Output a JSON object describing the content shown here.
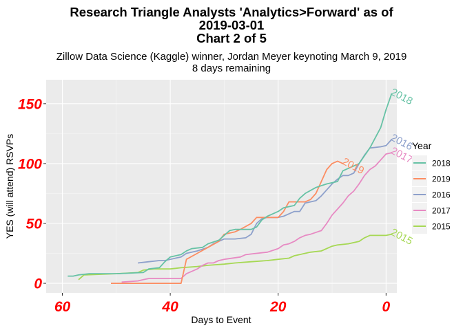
{
  "chart_data": {
    "type": "line",
    "title_lines": [
      "Research Triangle Analysts 'Analytics>Forward' as of",
      "2019-03-01",
      "Chart 2 of 5"
    ],
    "subtitle_lines": [
      "Zillow Data Science (Kaggle) winner, Jordan Meyer keynoting March 9, 2019",
      "8 days remaining"
    ],
    "xlabel": "Days to Event",
    "ylabel": "YES (will attend) RSVPs",
    "x_reversed": true,
    "xlim": [
      63,
      -2
    ],
    "ylim": [
      -8,
      170
    ],
    "x_ticks": [
      60,
      40,
      20,
      0
    ],
    "y_ticks": [
      0,
      50,
      100,
      150
    ],
    "grid": true,
    "legend": {
      "title": "Year",
      "position": "right"
    },
    "series": [
      {
        "name": "2018",
        "color": "#66C2A5",
        "end_label": "2018",
        "points": [
          [
            59,
            6
          ],
          [
            58,
            6
          ],
          [
            57,
            7
          ],
          [
            55,
            8
          ],
          [
            50,
            8
          ],
          [
            45,
            9
          ],
          [
            44,
            12
          ],
          [
            42,
            13
          ],
          [
            41,
            18
          ],
          [
            40,
            22
          ],
          [
            38,
            24
          ],
          [
            37,
            27
          ],
          [
            36,
            29
          ],
          [
            34,
            30
          ],
          [
            33,
            33
          ],
          [
            31,
            36
          ],
          [
            30,
            40
          ],
          [
            29,
            44
          ],
          [
            28,
            45
          ],
          [
            25,
            45
          ],
          [
            24,
            47
          ],
          [
            23,
            53
          ],
          [
            22,
            56
          ],
          [
            21,
            58
          ],
          [
            20,
            60
          ],
          [
            19,
            63
          ],
          [
            17,
            65
          ],
          [
            16,
            71
          ],
          [
            15,
            75
          ],
          [
            13,
            80
          ],
          [
            11,
            83
          ],
          [
            9,
            85
          ],
          [
            8,
            94
          ],
          [
            7,
            96
          ],
          [
            6,
            98
          ],
          [
            5,
            100
          ],
          [
            3,
            113
          ],
          [
            1,
            130
          ],
          [
            0,
            145
          ],
          [
            -1,
            158
          ]
        ]
      },
      {
        "name": "2019",
        "color": "#FC8D62",
        "end_label": "2019",
        "points": [
          [
            51,
            0
          ],
          [
            38,
            0
          ],
          [
            37,
            20
          ],
          [
            35,
            25
          ],
          [
            33,
            30
          ],
          [
            31,
            35
          ],
          [
            30,
            41
          ],
          [
            28,
            43
          ],
          [
            27,
            45
          ],
          [
            25,
            50
          ],
          [
            24,
            55
          ],
          [
            20,
            55
          ],
          [
            19,
            60
          ],
          [
            18,
            68
          ],
          [
            15,
            68
          ],
          [
            14,
            70
          ],
          [
            13,
            75
          ],
          [
            12,
            85
          ],
          [
            11,
            95
          ],
          [
            10,
            100
          ],
          [
            9,
            102
          ],
          [
            8,
            100
          ]
        ]
      },
      {
        "name": "2016",
        "color": "#8DA0CB",
        "end_label": "2016",
        "points": [
          [
            46,
            17
          ],
          [
            44,
            18
          ],
          [
            42,
            19
          ],
          [
            41,
            19
          ],
          [
            40,
            20
          ],
          [
            38,
            22
          ],
          [
            37,
            25
          ],
          [
            35,
            27
          ],
          [
            33,
            30
          ],
          [
            32,
            33
          ],
          [
            31,
            35
          ],
          [
            30,
            37
          ],
          [
            28,
            37
          ],
          [
            26,
            38
          ],
          [
            25,
            41
          ],
          [
            24,
            50
          ],
          [
            23,
            54
          ],
          [
            22,
            55
          ],
          [
            20,
            55
          ],
          [
            19,
            56
          ],
          [
            18,
            58
          ],
          [
            17,
            60
          ],
          [
            16,
            60
          ],
          [
            15,
            67
          ],
          [
            14,
            68
          ],
          [
            13,
            69
          ],
          [
            12,
            73
          ],
          [
            11,
            78
          ],
          [
            10,
            83
          ],
          [
            9,
            87
          ],
          [
            8,
            90
          ],
          [
            7,
            90
          ],
          [
            6,
            92
          ],
          [
            5,
            100
          ],
          [
            4,
            107
          ],
          [
            3,
            113
          ],
          [
            1,
            114
          ],
          [
            0,
            115
          ],
          [
            -1,
            120
          ]
        ]
      },
      {
        "name": "2017",
        "color": "#E78AC3",
        "end_label": "2017",
        "points": [
          [
            49,
            1
          ],
          [
            46,
            2
          ],
          [
            45,
            3
          ],
          [
            44,
            4
          ],
          [
            38,
            4
          ],
          [
            37,
            8
          ],
          [
            36,
            10
          ],
          [
            35,
            12
          ],
          [
            34,
            15
          ],
          [
            33,
            17
          ],
          [
            32,
            17
          ],
          [
            31,
            19
          ],
          [
            30,
            20
          ],
          [
            27,
            22
          ],
          [
            26,
            24
          ],
          [
            24,
            25
          ],
          [
            22,
            26
          ],
          [
            20,
            29
          ],
          [
            19,
            32
          ],
          [
            18,
            33
          ],
          [
            17,
            35
          ],
          [
            16,
            38
          ],
          [
            15,
            40
          ],
          [
            14,
            41
          ],
          [
            12,
            44
          ],
          [
            11,
            50
          ],
          [
            10,
            57
          ],
          [
            9,
            62
          ],
          [
            8,
            67
          ],
          [
            7,
            73
          ],
          [
            6,
            77
          ],
          [
            5,
            83
          ],
          [
            4,
            90
          ],
          [
            3,
            95
          ],
          [
            2,
            98
          ],
          [
            1,
            103
          ],
          [
            0,
            108
          ],
          [
            -1,
            109
          ]
        ]
      },
      {
        "name": "2015",
        "color": "#A6D854",
        "end_label": "2015",
        "points": [
          [
            57,
            3
          ],
          [
            56,
            7
          ],
          [
            50,
            8
          ],
          [
            46,
            9
          ],
          [
            45,
            11
          ],
          [
            43,
            12
          ],
          [
            40,
            12
          ],
          [
            38,
            13
          ],
          [
            35,
            14
          ],
          [
            33,
            15
          ],
          [
            30,
            16
          ],
          [
            28,
            17
          ],
          [
            25,
            18
          ],
          [
            22,
            19
          ],
          [
            20,
            20
          ],
          [
            18,
            21
          ],
          [
            17,
            23
          ],
          [
            15,
            25
          ],
          [
            14,
            26
          ],
          [
            12,
            27
          ],
          [
            10,
            31
          ],
          [
            9,
            32
          ],
          [
            7,
            33
          ],
          [
            5,
            35
          ],
          [
            4,
            38
          ],
          [
            3,
            40
          ],
          [
            2,
            40
          ],
          [
            1,
            40
          ],
          [
            0,
            40
          ],
          [
            -1,
            41
          ]
        ]
      }
    ]
  }
}
